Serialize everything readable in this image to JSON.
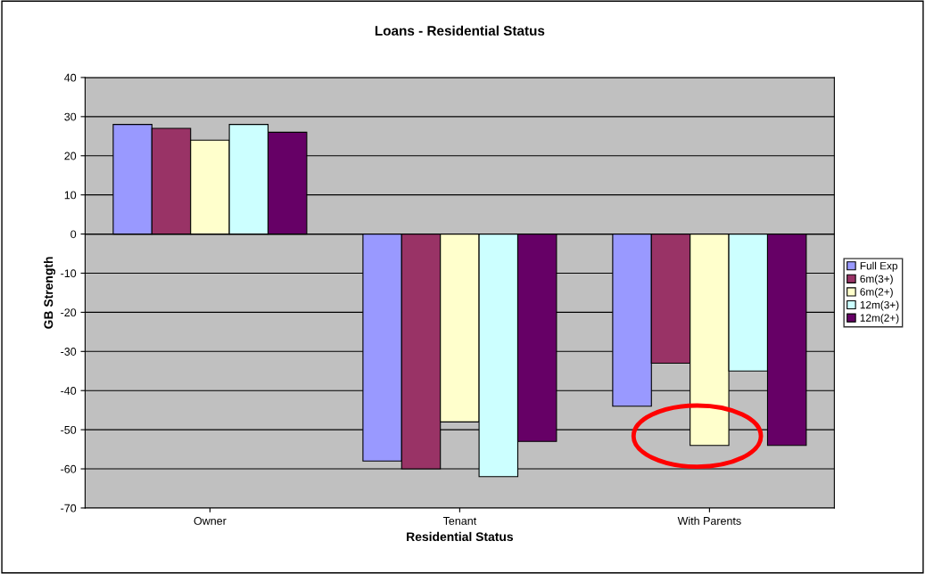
{
  "chart_data": {
    "type": "bar",
    "title": "Loans - Residential Status",
    "xlabel": "Residential Status",
    "ylabel": "GB Strength",
    "categories": [
      "Owner",
      "Tenant",
      "With Parents"
    ],
    "series": [
      {
        "name": "Full Exp",
        "color": "#9999ff",
        "values": [
          28,
          -58,
          -44
        ]
      },
      {
        "name": "6m(3+)",
        "color": "#993366",
        "values": [
          27,
          -60,
          -33
        ]
      },
      {
        "name": "6m(2+)",
        "color": "#ffffcc",
        "values": [
          24,
          -48,
          -54
        ]
      },
      {
        "name": "12m(3+)",
        "color": "#ccffff",
        "values": [
          28,
          -62,
          -35
        ]
      },
      {
        "name": "12m(2+)",
        "color": "#660066",
        "values": [
          26,
          -53,
          -54
        ]
      }
    ],
    "ylim": [
      -70,
      40
    ],
    "yticks": [
      -70,
      -60,
      -50,
      -40,
      -30,
      -20,
      -10,
      0,
      10,
      20,
      30,
      40
    ],
    "grid": "y",
    "legend": "right"
  }
}
